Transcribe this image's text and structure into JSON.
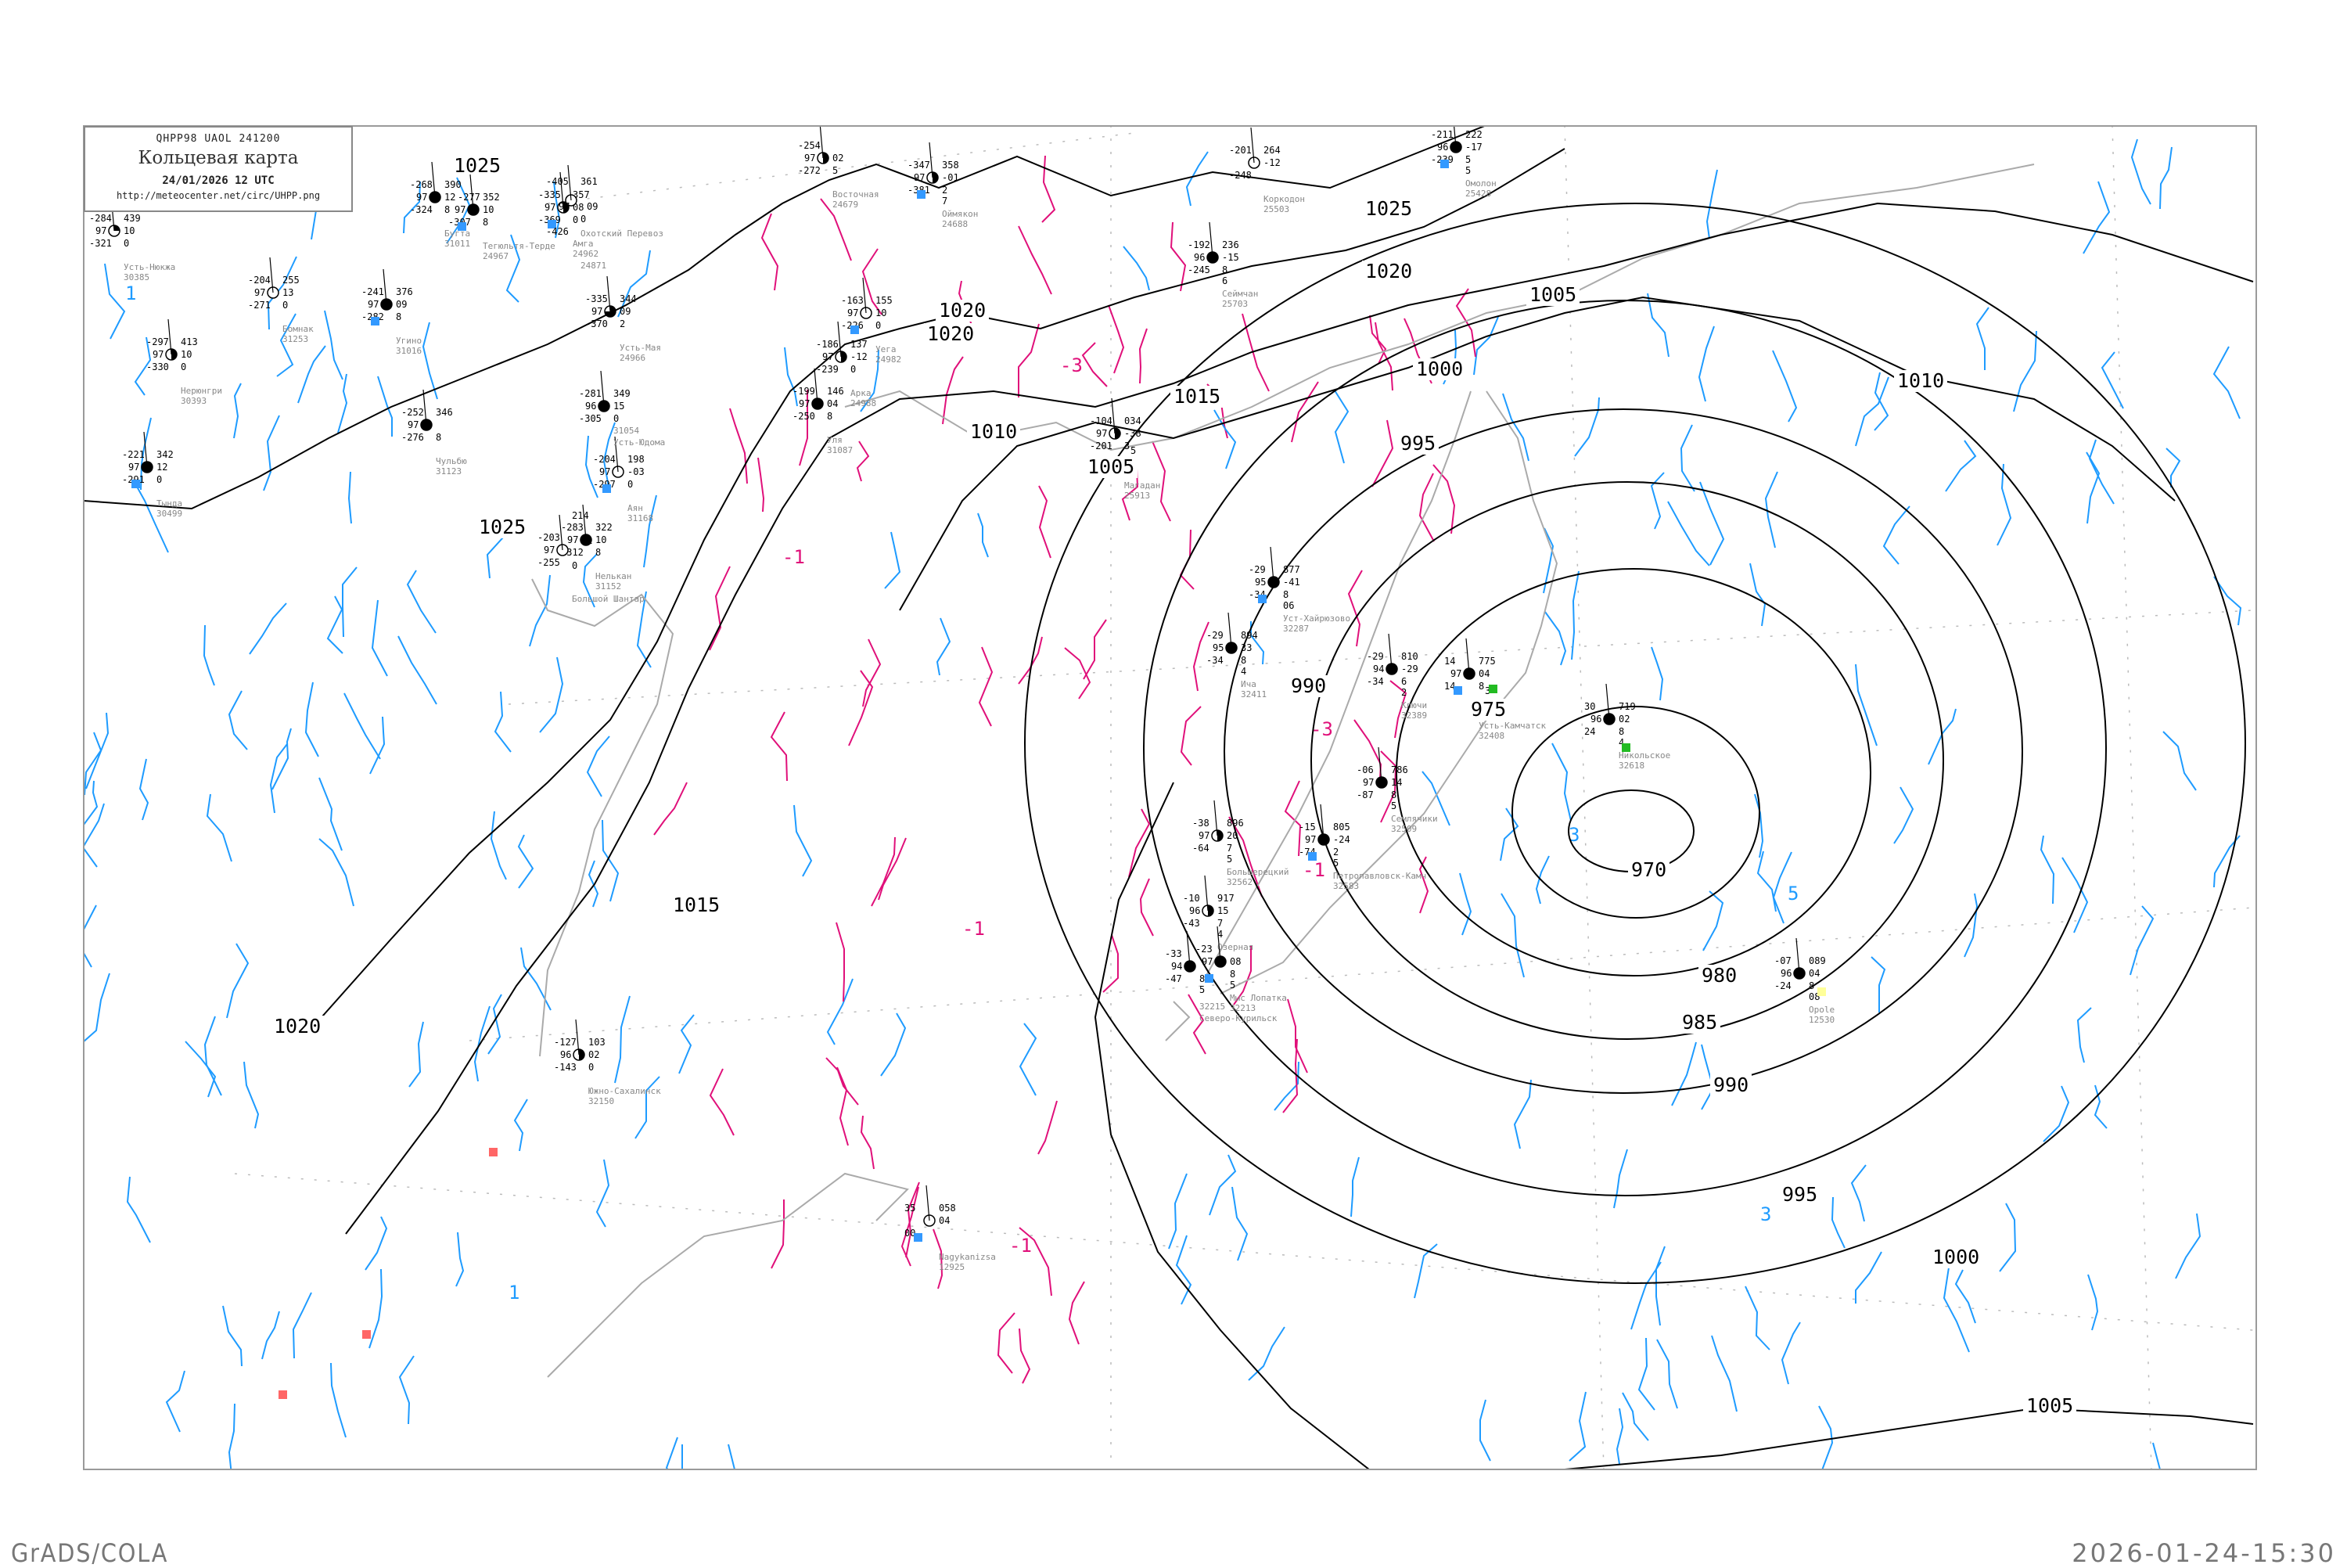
{
  "header": {
    "code": "QHPP98   UAOL   241200",
    "title": "Кольцевая карта",
    "date": "24/01/2026 12 UTC",
    "url": "http://meteocenter.net/circ/UHPP.png"
  },
  "footer": {
    "left": "GrADS/COLA",
    "right": "2026-01-24-15:30"
  },
  "colors": {
    "isobar": "#000000",
    "coastline": "#aaaaaa",
    "isallobar_positive": "#1e9bff",
    "isallobar_negative": "#e0107a",
    "precip_snow": "#3399ff",
    "precip_green": "#22bb22",
    "precip_red": "#ff6666"
  },
  "isobars": [
    {
      "label": "970"
    },
    {
      "label": "975"
    },
    {
      "label": "980"
    },
    {
      "label": "985"
    },
    {
      "label": "990"
    },
    {
      "label": "995"
    },
    {
      "label": "1000"
    },
    {
      "label": "1005"
    },
    {
      "label": "1010"
    },
    {
      "label": "1015"
    },
    {
      "label": "1020"
    },
    {
      "label": "1025"
    }
  ],
  "isallobar_labels": [
    "-1",
    "-3",
    "-1",
    "-1",
    "1",
    "3",
    "5",
    "3",
    "1",
    "-1",
    "-3"
  ],
  "stations": [
    {
      "name": "Оймякон",
      "id": "24688",
      "t": "-347",
      "p": "97",
      "td": "-381",
      "pp": "358",
      "dp": "-01",
      "c": "2",
      "h": "7",
      "cover": 0.5
    },
    {
      "name": "Восточная",
      "id": "24679",
      "t": "-254",
      "p": "97",
      "td": "-272",
      "pp": "",
      "dp": "02",
      "c": "5",
      "h": "",
      "cover": 0.5
    },
    {
      "name": "Сеймчан",
      "id": "25703",
      "t": "-192",
      "p": "96",
      "td": "-245",
      "pp": "236",
      "dp": "-15",
      "c": "8",
      "h": "6",
      "cover": 1
    },
    {
      "name": "Омолон",
      "id": "25428",
      "t": "-211",
      "p": "96",
      "td": "-239",
      "pp": "222",
      "dp": "-17",
      "c": "5",
      "h": "5",
      "cover": 1
    },
    {
      "name": "Коркодон",
      "id": "25503",
      "t": "-201",
      "p": "",
      "td": "-248",
      "pp": "264",
      "dp": "-12",
      "c": "",
      "h": "",
      "cover": 0
    },
    {
      "name": "Магадан",
      "id": "25913",
      "t": "-104",
      "p": "97",
      "td": "-201",
      "pp": "034",
      "dp": "-38",
      "c": "3",
      "h": "5",
      "cover": 0.5
    },
    {
      "name": "Уега",
      "id": "24982",
      "t": "-163",
      "p": "97",
      "td": "-226",
      "pp": "155",
      "dp": "10",
      "c": "0",
      "h": "",
      "cover": 0
    },
    {
      "name": "Аркa",
      "id": "24988",
      "t": "-186",
      "p": "97",
      "td": "-239",
      "pp": "137",
      "dp": "-12",
      "c": "0",
      "h": "",
      "cover": 0.5
    },
    {
      "name": "Уля",
      "id": "31087",
      "t": "-199",
      "p": "97",
      "td": "-250",
      "pp": "146",
      "dp": "04",
      "c": "8",
      "h": "",
      "cover": 1
    },
    {
      "name": "Аян",
      "id": "31168",
      "t": "-204",
      "p": "97",
      "td": "-297",
      "pp": "198",
      "dp": "-03",
      "c": "0",
      "h": "",
      "cover": 0
    },
    {
      "name": "Нелькан",
      "id": "31152",
      "t": "-283",
      "p": "97",
      "td": "-312",
      "pp": "322",
      "dp": "10",
      "c": "8",
      "h": "",
      "cover": 1
    },
    {
      "name": "Чульбю",
      "id": "31123",
      "t": "-252",
      "p": "97",
      "td": "-276",
      "pp": "346",
      "dp": "",
      "c": "8",
      "h": "",
      "cover": 1
    },
    {
      "name": "Угино",
      "id": "31016",
      "t": "-241",
      "p": "97",
      "td": "-282",
      "pp": "376",
      "dp": "09",
      "c": "8",
      "h": "",
      "cover": 1
    },
    {
      "name": "Усть-Юдома",
      "id": "31054",
      "t": "-281",
      "p": "96",
      "td": "-305",
      "pp": "349",
      "dp": "15",
      "c": "0",
      "h": "",
      "cover": 1
    },
    {
      "name": "Усть-Мая",
      "id": "24966",
      "t": "-335",
      "p": "97",
      "td": "-370",
      "pp": "344",
      "dp": "09",
      "c": "2",
      "h": "",
      "cover": 0.75
    },
    {
      "name": "Амга",
      "id": "24962",
      "t": "-335",
      "p": "97",
      "td": "-369",
      "pp": "357",
      "dp": "08",
      "c": "0",
      "h": "",
      "cover": 0.5
    },
    {
      "name": "Охотский Перевоз",
      "id": "24871",
      "t": "-405",
      "p": "97",
      "td": "-426",
      "pp": "361",
      "dp": "09",
      "c": "0",
      "h": "",
      "cover": 0
    },
    {
      "name": "Нерюнгри",
      "id": "30393",
      "t": "-297",
      "p": "97",
      "td": "-330",
      "pp": "413",
      "dp": "10",
      "c": "0",
      "h": "",
      "cover": 0.5
    },
    {
      "name": "Тында",
      "id": "30499",
      "t": "-221",
      "p": "97",
      "td": "-291",
      "pp": "342",
      "dp": "12",
      "c": "0",
      "h": "",
      "cover": 1
    },
    {
      "name": "Бомнак",
      "id": "31253",
      "t": "-204",
      "p": "97",
      "td": "-271",
      "pp": "255",
      "dp": "13",
      "c": "0",
      "h": "",
      "cover": 0
    },
    {
      "name": "Большой Шантар",
      "id": "",
      "t": "-203",
      "p": "97",
      "td": "-255",
      "pp": "214",
      "dp": "02",
      "c": "0",
      "h": "",
      "cover": 0
    },
    {
      "name": "Уст-Хайрюзово",
      "id": "32287",
      "t": "-29",
      "p": "95",
      "td": "-34",
      "pp": "877",
      "dp": "-41",
      "c": "8",
      "h": "06",
      "cover": 1
    },
    {
      "name": "Ича",
      "id": "32411",
      "t": "-29",
      "p": "95",
      "td": "-34",
      "pp": "894",
      "dp": "33",
      "c": "8",
      "h": "4",
      "cover": 1
    },
    {
      "name": "Ключи",
      "id": "32389",
      "t": "-29",
      "p": "94",
      "td": "-34",
      "pp": "810",
      "dp": "-29",
      "c": "6",
      "h": "2",
      "cover": 1
    },
    {
      "name": "Усть-Камчатск",
      "id": "32408",
      "t": "14",
      "p": "97",
      "td": "14",
      "pp": "775",
      "dp": "04",
      "c": "8",
      "h": "3",
      "cover": 1
    },
    {
      "name": "Никольское",
      "id": "32618",
      "t": "30",
      "p": "96",
      "td": "24",
      "pp": "719",
      "dp": "02",
      "c": "8",
      "h": "4",
      "cover": 1
    },
    {
      "name": "Семлячики",
      "id": "32509",
      "t": "-06",
      "p": "97",
      "td": "-87",
      "pp": "786",
      "dp": "14",
      "c": "8",
      "h": "5",
      "cover": 1
    },
    {
      "name": "Петропавловск-Камч",
      "id": "32583",
      "t": "-15",
      "p": "97",
      "td": "-74",
      "pp": "805",
      "dp": "-24",
      "c": "2",
      "h": "5",
      "cover": 1
    },
    {
      "name": "Большерецкий",
      "id": "32562",
      "t": "-38",
      "p": "97",
      "td": "-64",
      "pp": "896",
      "dp": "20",
      "c": "7",
      "h": "5",
      "cover": 0.5
    },
    {
      "name": "Озерная",
      "id": "",
      "t": "-10",
      "p": "96",
      "td": "-43",
      "pp": "917",
      "dp": "15",
      "c": "7",
      "h": "4",
      "cover": 0.5
    },
    {
      "name": "Мыс Лопатка",
      "id": "32213",
      "t": "-23",
      "p": "97",
      "td": "",
      "pp": "",
      "dp": "08",
      "c": "8",
      "h": "5",
      "cover": 1
    },
    {
      "name": "Северо-Курильск",
      "id": "32215",
      "t": "-33",
      "p": "94",
      "td": "-47",
      "pp": "",
      "dp": "",
      "c": "8",
      "h": "5",
      "cover": 1
    },
    {
      "name": "Opole",
      "id": "12530",
      "t": "-07",
      "p": "96",
      "td": "-24",
      "pp": "089",
      "dp": "04",
      "c": "8",
      "h": "08",
      "cover": 1
    },
    {
      "name": "Nagykanizsa",
      "id": "12925",
      "t": "35",
      "p": "",
      "td": "00",
      "pp": "058",
      "dp": "04",
      "c": "",
      "h": "",
      "cover": 0
    },
    {
      "name": "Усть-Нюкжа",
      "id": "30385",
      "t": "-284",
      "p": "97",
      "td": "-321",
      "pp": "439",
      "dp": "10",
      "c": "0",
      "h": "",
      "cover": 0.25
    },
    {
      "name": "Бугта",
      "id": "31011",
      "t": "-268",
      "p": "97",
      "td": "-324",
      "pp": "390",
      "dp": "12",
      "c": "8",
      "h": "",
      "cover": 1
    },
    {
      "name": "Тегюльтя-Терде",
      "id": "24967",
      "t": "-277",
      "p": "97",
      "td": "-307",
      "pp": "352",
      "dp": "10",
      "c": "8",
      "h": "",
      "cover": 1
    },
    {
      "name": "Южно-Сахалинск",
      "id": "32150",
      "t": "-127",
      "p": "96",
      "td": "-143",
      "pp": "103",
      "dp": "02",
      "c": "0",
      "h": "",
      "cover": 0.5
    }
  ]
}
